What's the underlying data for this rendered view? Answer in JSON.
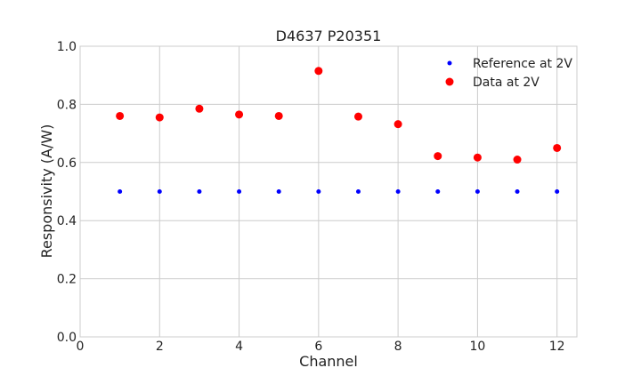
{
  "chart_data": {
    "type": "scatter",
    "title": "D4637 P20351",
    "xlabel": "Channel",
    "ylabel": "Responsivity (A/W)",
    "xlim": [
      0,
      12.5
    ],
    "ylim": [
      0.0,
      1.0
    ],
    "xticks": [
      0,
      2,
      4,
      6,
      8,
      10,
      12
    ],
    "xtick_labels": [
      "0",
      "2",
      "4",
      "6",
      "8",
      "10",
      "12"
    ],
    "yticks": [
      0.0,
      0.2,
      0.4,
      0.6,
      0.8,
      1.0
    ],
    "ytick_labels": [
      "0.0",
      "0.2",
      "0.4",
      "0.6",
      "0.8",
      "1.0"
    ],
    "grid": true,
    "legend_position": "top-right",
    "series": [
      {
        "name": "Reference at 2V",
        "color": "#0000ff",
        "marker": "small-dot",
        "x": [
          1,
          2,
          3,
          4,
          5,
          6,
          7,
          8,
          9,
          10,
          11,
          12
        ],
        "y": [
          0.5,
          0.5,
          0.5,
          0.5,
          0.5,
          0.5,
          0.5,
          0.5,
          0.5,
          0.5,
          0.5,
          0.5
        ]
      },
      {
        "name": "Data at 2V",
        "color": "#ff0000",
        "marker": "large-dot",
        "x": [
          1,
          2,
          3,
          4,
          5,
          6,
          7,
          8,
          9,
          10,
          11,
          12
        ],
        "y": [
          0.76,
          0.755,
          0.785,
          0.765,
          0.76,
          0.915,
          0.758,
          0.732,
          0.622,
          0.617,
          0.61,
          0.65
        ]
      }
    ]
  }
}
